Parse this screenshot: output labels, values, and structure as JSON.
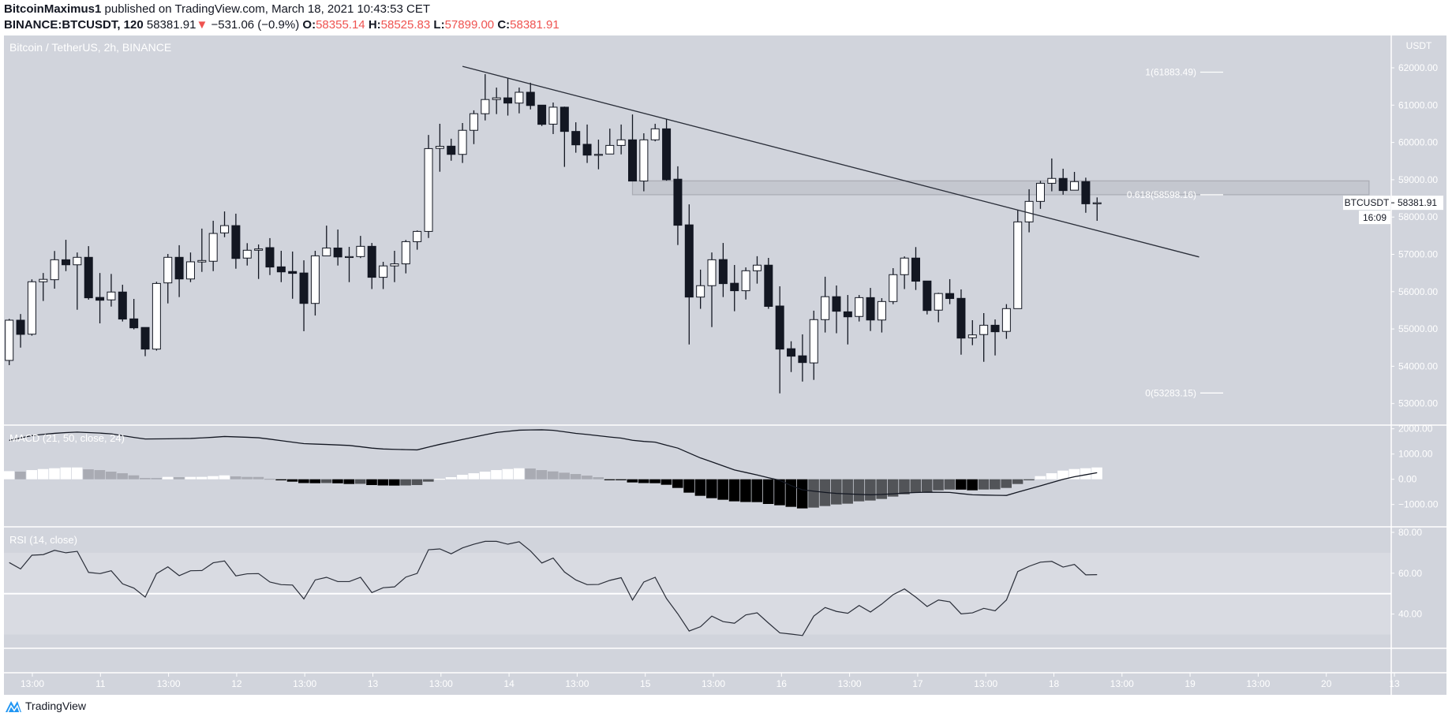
{
  "header": {
    "author": "BitcoinMaximus1",
    "published": "published on TradingView.com, March 18, 2021 10:43:53 CET",
    "symbol": "BINANCE:BTCUSDT, 120",
    "last": "58381.91",
    "change_arrow": "▼",
    "change": "−531.06 (−0.9%)",
    "o_label": "O:",
    "o": "58355.14",
    "h_label": "H:",
    "h": "58525.83",
    "l_label": "L:",
    "l": "57899.00",
    "c_label": "C:",
    "c": "58381.91"
  },
  "colors": {
    "background": "#d1d4dc",
    "up_candle": "#ffffff",
    "down_candle": "#131722",
    "hist_up_rising": "#ffffff",
    "hist_up_falling": "#a9abb3",
    "hist_down_falling": "#000000",
    "hist_down_rising": "#525458",
    "negative_text": "#ef5350",
    "rsi_band": "#d9dbe2"
  },
  "footer": {
    "brand": "TradingView",
    "logo_icon": "tradingview-logo-icon"
  },
  "chart_data": [
    {
      "type": "candlestick",
      "title": "Bitcoin / TetherUS, 2h, BINANCE",
      "y_unit": "USDT",
      "ylim": [
        52600,
        62800
      ],
      "y_ticks": [
        "62000.00",
        "61000.00",
        "60000.00",
        "59000.00",
        "58000.00",
        "57000.00",
        "56000.00",
        "55000.00",
        "54000.00",
        "53000.00"
      ],
      "x_ticks": [
        "13:00",
        "11",
        "13:00",
        "12",
        "13:00",
        "13",
        "13:00",
        "14",
        "13:00",
        "15",
        "13:00",
        "16",
        "13:00",
        "17",
        "13:00",
        "18",
        "13:00",
        "19",
        "13:00",
        "20",
        "13"
      ],
      "last_price_label": {
        "symbol": "BTCUSDT",
        "price": "58381.91",
        "countdown": "16:09"
      },
      "ohlc": [
        [
          54157,
          55270,
          54030,
          55235
        ],
        [
          55235,
          55400,
          54500,
          54855
        ],
        [
          54860,
          56330,
          54820,
          56265
        ],
        [
          56265,
          56500,
          55750,
          56330
        ],
        [
          56320,
          57090,
          56080,
          56855
        ],
        [
          56855,
          57390,
          56550,
          56720
        ],
        [
          56720,
          57050,
          55515,
          56920
        ],
        [
          56920,
          57220,
          55785,
          55835
        ],
        [
          55845,
          56500,
          55150,
          55770
        ],
        [
          55780,
          56475,
          55600,
          55990
        ],
        [
          55990,
          56185,
          55200,
          55265
        ],
        [
          55270,
          55805,
          54990,
          55030
        ],
        [
          55040,
          55040,
          54270,
          54460
        ],
        [
          54460,
          56265,
          54420,
          56220
        ],
        [
          56235,
          57010,
          55685,
          56920
        ],
        [
          56920,
          57245,
          55855,
          56340
        ],
        [
          56340,
          57050,
          56255,
          56800
        ],
        [
          56795,
          57690,
          56530,
          56835
        ],
        [
          56815,
          57900,
          56550,
          57560
        ],
        [
          57575,
          58150,
          57460,
          57770
        ],
        [
          57770,
          58090,
          56615,
          56890
        ],
        [
          56900,
          57300,
          56700,
          57110
        ],
        [
          57110,
          57265,
          56340,
          57145
        ],
        [
          57180,
          57435,
          56445,
          56660
        ],
        [
          56665,
          57095,
          56255,
          56530
        ],
        [
          56540,
          57075,
          55810,
          56490
        ],
        [
          56500,
          56840,
          54940,
          55685
        ],
        [
          55685,
          57095,
          55360,
          56960
        ],
        [
          56960,
          57770,
          56960,
          57170
        ],
        [
          57170,
          57665,
          56700,
          56930
        ],
        [
          56940,
          57200,
          56255,
          56940
        ],
        [
          56940,
          57495,
          56900,
          57215
        ],
        [
          57215,
          57305,
          56070,
          56385
        ],
        [
          56385,
          56800,
          56070,
          56690
        ],
        [
          56690,
          57095,
          56255,
          56745
        ],
        [
          56745,
          57385,
          56490,
          57340
        ],
        [
          57340,
          57640,
          57125,
          57615
        ],
        [
          57615,
          60200,
          57440,
          59835
        ],
        [
          59840,
          60500,
          59215,
          59895
        ],
        [
          59900,
          60100,
          59510,
          59680
        ],
        [
          59680,
          60520,
          59450,
          60325
        ],
        [
          60325,
          60860,
          59955,
          60770
        ],
        [
          60770,
          61830,
          60590,
          61150
        ],
        [
          61150,
          61470,
          60760,
          61195
        ],
        [
          61195,
          61720,
          60720,
          61055
        ],
        [
          61055,
          61470,
          60780,
          61345
        ],
        [
          61345,
          61600,
          60885,
          60990
        ],
        [
          61000,
          61000,
          60440,
          60485
        ],
        [
          60490,
          61070,
          60225,
          60945
        ],
        [
          60945,
          60960,
          59345,
          60295
        ],
        [
          60295,
          60540,
          59725,
          59935
        ],
        [
          59950,
          60480,
          59450,
          59660
        ],
        [
          59680,
          60075,
          59280,
          59680
        ],
        [
          59690,
          60370,
          59690,
          59920
        ],
        [
          59920,
          60480,
          59680,
          60070
        ],
        [
          60070,
          60750,
          58965,
          58965
        ],
        [
          58965,
          60245,
          58690,
          60070
        ],
        [
          60070,
          60500,
          60030,
          60365
        ],
        [
          60365,
          60625,
          58975,
          59000
        ],
        [
          59015,
          59360,
          57250,
          57780
        ],
        [
          57790,
          58340,
          54585,
          55855
        ],
        [
          55855,
          56590,
          55540,
          56160
        ],
        [
          56160,
          57050,
          55050,
          56855
        ],
        [
          56860,
          57305,
          55855,
          56215
        ],
        [
          56225,
          56715,
          55475,
          56025
        ],
        [
          56025,
          56650,
          55790,
          56560
        ],
        [
          56560,
          56950,
          56215,
          56710
        ],
        [
          56710,
          56905,
          55540,
          55605
        ],
        [
          55615,
          56145,
          53275,
          54460
        ],
        [
          54470,
          54670,
          53845,
          54270
        ],
        [
          54280,
          54855,
          53590,
          54100
        ],
        [
          54090,
          55490,
          53635,
          55250
        ],
        [
          55250,
          56400,
          54905,
          55865
        ],
        [
          55865,
          56165,
          54885,
          55475
        ],
        [
          55460,
          55910,
          54585,
          55325
        ],
        [
          55335,
          55910,
          55200,
          55840
        ],
        [
          55840,
          56100,
          54945,
          55240
        ],
        [
          55240,
          55825,
          54905,
          55735
        ],
        [
          55735,
          56630,
          55665,
          56455
        ],
        [
          56455,
          56945,
          56070,
          56900
        ],
        [
          56900,
          57195,
          56045,
          56280
        ],
        [
          56285,
          56285,
          55390,
          55495
        ],
        [
          55505,
          55970,
          55180,
          55950
        ],
        [
          55950,
          56335,
          55665,
          55815
        ],
        [
          55820,
          56060,
          54310,
          54755
        ],
        [
          54765,
          55235,
          54565,
          54840
        ],
        [
          54850,
          55425,
          54120,
          55100
        ],
        [
          55100,
          55255,
          54290,
          54925
        ],
        [
          54935,
          55665,
          54735,
          55545
        ],
        [
          55545,
          58180,
          55545,
          57870
        ],
        [
          57870,
          58745,
          57590,
          58420
        ],
        [
          58420,
          58970,
          58220,
          58905
        ],
        [
          58905,
          59570,
          58690,
          59035
        ],
        [
          59035,
          59295,
          58600,
          58710
        ],
        [
          58720,
          59210,
          58720,
          58950
        ],
        [
          58950,
          59055,
          58115,
          58355
        ],
        [
          58355.14,
          58525.83,
          57899.0,
          58381.91
        ]
      ],
      "trendline": {
        "from": {
          "bar": 40,
          "price": 62040
        },
        "to": {
          "bar": 105,
          "price": 56930
        }
      },
      "zone": {
        "from_bar": 55,
        "to_bar": 120,
        "price_low": 58598.16,
        "price_high": 58970
      },
      "fib_levels": [
        {
          "label": "1(61883.49)",
          "price": 61883.49
        },
        {
          "label": "0.618(58598.16)",
          "price": 58598.16
        },
        {
          "label": "0(53283.15)",
          "price": 53283.15
        }
      ]
    },
    {
      "type": "bar+line",
      "title": "MACD (21, 50, close, 24)",
      "ylim": [
        -2200,
        2100
      ],
      "y_ticks": [
        {
          "v": 2000,
          "label": "2000.00"
        },
        {
          "v": 1000,
          "label": "1000.00"
        },
        {
          "v": 0,
          "label": "0.00"
        },
        {
          "v": -1000,
          "label": "−1000.00"
        }
      ],
      "histogram": [
        322,
        302,
        364,
        406,
        437,
        468,
        468,
        395,
        364,
        302,
        239,
        156,
        52,
        50,
        94,
        83,
        94,
        96,
        125,
        156,
        114,
        94,
        92,
        21,
        -42,
        -94,
        -150,
        -156,
        -150,
        -160,
        -187,
        -180,
        -229,
        -245,
        -250,
        -245,
        -229,
        -94,
        21,
        83,
        177,
        239,
        302,
        364,
        406,
        437,
        427,
        364,
        312,
        260,
        208,
        146,
        83,
        -5,
        -31,
        -125,
        -150,
        -156,
        -218,
        -343,
        -530,
        -655,
        -749,
        -811,
        -874,
        -900,
        -905,
        -978,
        -1030,
        -1092,
        -1154,
        -1123,
        -1061,
        -998,
        -967,
        -874,
        -842,
        -780,
        -686,
        -593,
        -530,
        -499,
        -437,
        -406,
        -410,
        -437,
        -406,
        -400,
        -343,
        -187,
        -42,
        125,
        239,
        343,
        406,
        437,
        468
      ],
      "line": [
        1540,
        1640,
        1730,
        1780,
        1820,
        1850,
        1870,
        1850,
        1830,
        1800,
        1730,
        1660,
        1595,
        1600,
        1605,
        1612,
        1618,
        1640,
        1665,
        1695,
        1680,
        1665,
        1645,
        1590,
        1530,
        1470,
        1412,
        1395,
        1380,
        1360,
        1340,
        1290,
        1235,
        1200,
        1185,
        1175,
        1165,
        1275,
        1383,
        1480,
        1575,
        1670,
        1765,
        1855,
        1900,
        1945,
        1955,
        1962,
        1940,
        1880,
        1820,
        1775,
        1725,
        1675,
        1630,
        1545,
        1500,
        1470,
        1350,
        1235,
        1040,
        845,
        690,
        530,
        370,
        270,
        170,
        60,
        -40,
        -250,
        -420,
        -470,
        -520,
        -560,
        -580,
        -600,
        -614,
        -600,
        -575,
        -545,
        -525,
        -512,
        -515,
        -520,
        -570,
        -615,
        -625,
        -635,
        -640,
        -510,
        -385,
        -260,
        -130,
        0,
        100,
        180,
        260
      ]
    },
    {
      "type": "line",
      "title": "RSI (14, close)",
      "ylim": [
        18,
        82.5
      ],
      "bands": {
        "upper": 70,
        "middle": 50,
        "lower": 30
      },
      "y_ticks": [
        {
          "v": 80,
          "label": "80.00"
        },
        {
          "v": 60,
          "label": "60.00"
        },
        {
          "v": 40,
          "label": "40.00"
        }
      ],
      "values": [
        65.2,
        62.1,
        68.8,
        69.1,
        71.2,
        70.0,
        70.7,
        60.4,
        59.8,
        61.2,
        54.8,
        52.7,
        48.3,
        59.8,
        63.1,
        58.8,
        61.2,
        61.3,
        65.1,
        66.0,
        58.7,
        59.7,
        59.8,
        55.7,
        54.4,
        54.2,
        47.4,
        56.7,
        58.0,
        55.9,
        55.9,
        58.0,
        50.5,
        52.9,
        53.3,
        58.1,
        59.9,
        71.5,
        71.9,
        69.5,
        72.4,
        74.2,
        75.6,
        75.6,
        74.2,
        75.4,
        70.9,
        65.0,
        67.4,
        60.6,
        56.7,
        54.4,
        54.5,
        56.5,
        57.8,
        46.9,
        55.7,
        58.0,
        47.6,
        40.1,
        31.7,
        33.8,
        39.0,
        36.3,
        35.5,
        39.6,
        40.6,
        35.6,
        30.8,
        30.2,
        29.5,
        39.0,
        43.2,
        41.3,
        40.4,
        44.2,
        41.0,
        44.9,
        49.5,
        52.3,
        48.3,
        43.7,
        46.9,
        46.0,
        40.1,
        40.6,
        42.8,
        41.6,
        46.9,
        60.8,
        63.4,
        65.4,
        65.8,
        63.0,
        64.3,
        59.2,
        59.3
      ]
    }
  ]
}
